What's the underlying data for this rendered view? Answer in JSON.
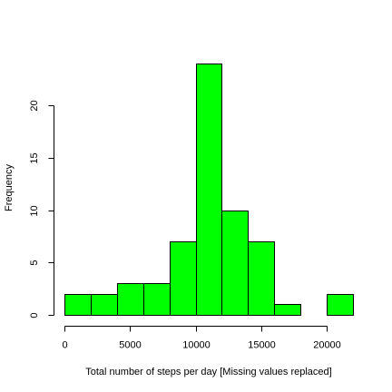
{
  "chart_data": {
    "type": "bar",
    "title": "",
    "xlabel": "Total number of steps per day [Missing values replaced]",
    "ylabel": "Frequency",
    "bin_edges": [
      0,
      2000,
      4000,
      6000,
      8000,
      10000,
      12000,
      14000,
      16000,
      18000,
      20000,
      22000
    ],
    "values": [
      2,
      2,
      3,
      3,
      7,
      24,
      10,
      7,
      1,
      0,
      2
    ],
    "xlim": [
      0,
      22000
    ],
    "ylim": [
      0,
      24
    ],
    "x_ticks": [
      0,
      5000,
      10000,
      15000,
      20000
    ],
    "x_tick_labels": [
      "0",
      "5000",
      "10000",
      "15000",
      "20000"
    ],
    "y_ticks": [
      0,
      5,
      10,
      15,
      20
    ],
    "y_tick_labels": [
      "0",
      "5",
      "10",
      "15",
      "20"
    ],
    "bar_color": "#00ff00",
    "bar_border_color": "#000000",
    "grid": false,
    "legend": "none"
  }
}
